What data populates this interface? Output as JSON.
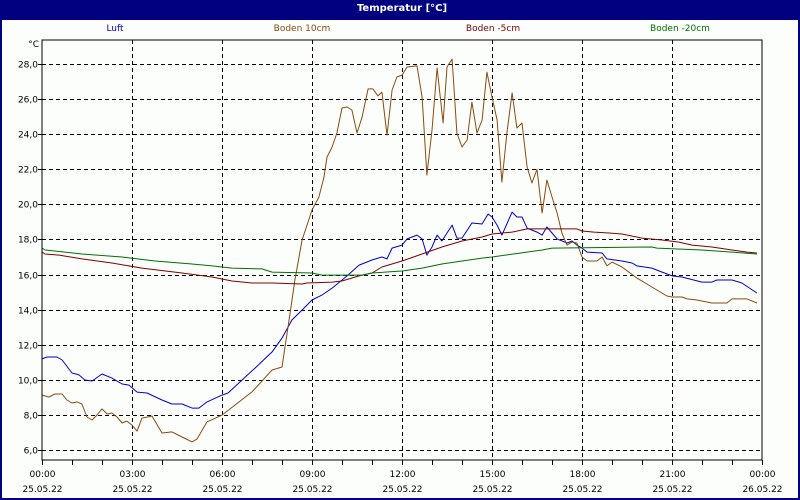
{
  "window": {
    "title": "Temperatur [°C]"
  },
  "colors": {
    "titlebar": "#000080",
    "luft": "#0000cc",
    "boden_10cm": "#8b4a0e",
    "boden_minus5cm": "#800000",
    "boden_minus20cm": "#007000"
  },
  "chart_data": {
    "type": "line",
    "title": "Temperatur [°C]",
    "xlabel": "",
    "ylabel": "°C",
    "ylim": [
      6.0,
      28.0
    ],
    "xlim_hours": [
      0,
      24
    ],
    "grid": true,
    "legend_position": "top",
    "y_ticks": [
      "6,0",
      "8,0",
      "10,0",
      "12,0",
      "14,0",
      "16,0",
      "18,0",
      "20,0",
      "22,0",
      "24,0",
      "26,0",
      "28,0"
    ],
    "y_tick_values": [
      6,
      8,
      10,
      12,
      14,
      16,
      18,
      20,
      22,
      24,
      26,
      28
    ],
    "x_ticks": [
      {
        "h": 0,
        "time": "00:00",
        "date": "25.05.22"
      },
      {
        "h": 3,
        "time": "03:00",
        "date": "25.05.22"
      },
      {
        "h": 6,
        "time": "06:00",
        "date": "25.05.22"
      },
      {
        "h": 9,
        "time": "09:00",
        "date": "25.05.22"
      },
      {
        "h": 12,
        "time": "12:00",
        "date": "25.05.22"
      },
      {
        "h": 15,
        "time": "15:00",
        "date": "25.05.22"
      },
      {
        "h": 18,
        "time": "18:00",
        "date": "25.05.22"
      },
      {
        "h": 21,
        "time": "21:00",
        "date": "25.05.22"
      },
      {
        "h": 24,
        "time": "00:00",
        "date": "26.05.22"
      }
    ],
    "series": [
      {
        "name": "Luft",
        "color": "#0000cc",
        "points": [
          [
            0,
            11.19
          ],
          [
            0.17,
            11.3
          ],
          [
            0.5,
            11.3
          ],
          [
            0.67,
            11.13
          ],
          [
            1,
            10.39
          ],
          [
            1.23,
            10.28
          ],
          [
            1.43,
            9.99
          ],
          [
            1.67,
            9.93
          ],
          [
            2,
            10.33
          ],
          [
            2.33,
            10.1
          ],
          [
            2.67,
            9.76
          ],
          [
            2.9,
            9.7
          ],
          [
            3.17,
            9.3
          ],
          [
            3.5,
            9.25
          ],
          [
            4,
            8.85
          ],
          [
            4.33,
            8.62
          ],
          [
            4.67,
            8.62
          ],
          [
            5,
            8.39
          ],
          [
            5.23,
            8.39
          ],
          [
            5.5,
            8.74
          ],
          [
            6,
            9.13
          ],
          [
            6.2,
            9.25
          ],
          [
            6.67,
            9.99
          ],
          [
            7.1,
            10.67
          ],
          [
            7.67,
            11.59
          ],
          [
            8,
            12.38
          ],
          [
            8.33,
            13.41
          ],
          [
            8.67,
            13.98
          ],
          [
            9,
            14.55
          ],
          [
            9.33,
            14.83
          ],
          [
            9.67,
            15.23
          ],
          [
            10.17,
            15.92
          ],
          [
            10.57,
            16.54
          ],
          [
            11,
            16.83
          ],
          [
            11.33,
            17.0
          ],
          [
            11.5,
            16.89
          ],
          [
            11.67,
            17.51
          ],
          [
            12,
            17.68
          ],
          [
            12.17,
            18.03
          ],
          [
            12.5,
            18.25
          ],
          [
            12.67,
            18.03
          ],
          [
            12.83,
            17.11
          ],
          [
            13,
            17.57
          ],
          [
            13.17,
            18.25
          ],
          [
            13.33,
            17.91
          ],
          [
            13.67,
            18.82
          ],
          [
            13.83,
            18.08
          ],
          [
            14,
            18.08
          ],
          [
            14.33,
            18.94
          ],
          [
            14.67,
            18.88
          ],
          [
            14.87,
            19.45
          ],
          [
            15,
            19.28
          ],
          [
            15.17,
            18.82
          ],
          [
            15.33,
            18.25
          ],
          [
            15.67,
            19.56
          ],
          [
            15.83,
            19.28
          ],
          [
            16,
            19.28
          ],
          [
            16.17,
            18.65
          ],
          [
            16.5,
            18.42
          ],
          [
            16.67,
            18.25
          ],
          [
            16.83,
            18.71
          ],
          [
            17,
            18.37
          ],
          [
            17.17,
            18.03
          ],
          [
            17.5,
            17.8
          ],
          [
            17.67,
            17.91
          ],
          [
            17.83,
            17.68
          ],
          [
            18,
            17.51
          ],
          [
            18.17,
            17.28
          ],
          [
            18.67,
            17.23
          ],
          [
            18.83,
            16.89
          ],
          [
            19.33,
            16.77
          ],
          [
            19.67,
            16.66
          ],
          [
            19.83,
            16.49
          ],
          [
            20.33,
            16.37
          ],
          [
            20.67,
            16.14
          ],
          [
            21,
            15.92
          ],
          [
            21.33,
            15.86
          ],
          [
            22,
            15.57
          ],
          [
            22.33,
            15.57
          ],
          [
            22.5,
            15.69
          ],
          [
            23,
            15.69
          ],
          [
            23.33,
            15.52
          ],
          [
            23.83,
            14.95
          ]
        ]
      },
      {
        "name": "Boden 10cm",
        "color": "#8b4a0e",
        "points": [
          [
            0,
            9.13
          ],
          [
            0.23,
            9.02
          ],
          [
            0.43,
            9.19
          ],
          [
            0.67,
            9.19
          ],
          [
            0.83,
            8.85
          ],
          [
            1,
            8.68
          ],
          [
            1.17,
            8.74
          ],
          [
            1.33,
            8.62
          ],
          [
            1.5,
            7.88
          ],
          [
            1.67,
            7.71
          ],
          [
            1.83,
            7.99
          ],
          [
            2,
            8.34
          ],
          [
            2.17,
            8.05
          ],
          [
            2.33,
            8.11
          ],
          [
            2.5,
            7.88
          ],
          [
            2.67,
            7.54
          ],
          [
            2.83,
            7.65
          ],
          [
            3,
            7.42
          ],
          [
            3.17,
            7.08
          ],
          [
            3.33,
            7.82
          ],
          [
            3.67,
            7.93
          ],
          [
            4,
            6.97
          ],
          [
            4.33,
            7.03
          ],
          [
            4.67,
            6.74
          ],
          [
            5,
            6.46
          ],
          [
            5.17,
            6.63
          ],
          [
            5.5,
            7.6
          ],
          [
            6,
            7.99
          ],
          [
            6.43,
            8.56
          ],
          [
            7,
            9.31
          ],
          [
            7.67,
            10.56
          ],
          [
            8,
            10.73
          ],
          [
            8.17,
            12.67
          ],
          [
            8.27,
            13.81
          ],
          [
            8.43,
            15.69
          ],
          [
            8.67,
            17.97
          ],
          [
            9,
            19.68
          ],
          [
            9.23,
            20.42
          ],
          [
            9.4,
            21.56
          ],
          [
            9.5,
            22.7
          ],
          [
            9.67,
            23.27
          ],
          [
            9.83,
            24.07
          ],
          [
            10,
            25.49
          ],
          [
            10.17,
            25.55
          ],
          [
            10.33,
            25.38
          ],
          [
            10.5,
            24.07
          ],
          [
            10.67,
            24.98
          ],
          [
            10.87,
            26.58
          ],
          [
            11.03,
            26.58
          ],
          [
            11.2,
            26.18
          ],
          [
            11.33,
            26.4
          ],
          [
            11.5,
            23.95
          ],
          [
            11.67,
            26.52
          ],
          [
            11.83,
            27.26
          ],
          [
            12,
            27.37
          ],
          [
            12.17,
            27.83
          ],
          [
            12.5,
            27.89
          ],
          [
            12.67,
            26.12
          ],
          [
            12.83,
            21.67
          ],
          [
            13,
            24.24
          ],
          [
            13.17,
            27.77
          ],
          [
            13.37,
            24.64
          ],
          [
            13.5,
            27.83
          ],
          [
            13.67,
            28.28
          ],
          [
            13.83,
            24.07
          ],
          [
            14,
            23.27
          ],
          [
            14.17,
            23.67
          ],
          [
            14.33,
            25.83
          ],
          [
            14.5,
            24.07
          ],
          [
            14.67,
            24.81
          ],
          [
            14.83,
            27.54
          ],
          [
            15,
            26.12
          ],
          [
            15.17,
            24.81
          ],
          [
            15.33,
            21.27
          ],
          [
            15.5,
            24.12
          ],
          [
            15.67,
            26.35
          ],
          [
            15.83,
            24.35
          ],
          [
            16,
            24.64
          ],
          [
            16.17,
            22.13
          ],
          [
            16.33,
            21.22
          ],
          [
            16.5,
            22.0
          ],
          [
            16.67,
            19.51
          ],
          [
            16.83,
            21.39
          ],
          [
            17,
            20.42
          ],
          [
            17.17,
            19.51
          ],
          [
            17.33,
            18.37
          ],
          [
            17.5,
            17.68
          ],
          [
            17.67,
            17.85
          ],
          [
            17.83,
            17.8
          ],
          [
            18,
            17.0
          ],
          [
            18.17,
            16.77
          ],
          [
            18.5,
            16.77
          ],
          [
            18.67,
            17.0
          ],
          [
            18.83,
            16.49
          ],
          [
            19,
            16.71
          ],
          [
            19.33,
            16.43
          ],
          [
            19.83,
            15.8
          ],
          [
            20.33,
            15.29
          ],
          [
            20.83,
            14.78
          ],
          [
            21,
            14.72
          ],
          [
            21.33,
            14.72
          ],
          [
            21.5,
            14.61
          ],
          [
            21.83,
            14.55
          ],
          [
            22.33,
            14.38
          ],
          [
            22.83,
            14.38
          ],
          [
            23,
            14.61
          ],
          [
            23.5,
            14.61
          ],
          [
            23.83,
            14.38
          ]
        ]
      },
      {
        "name": "Boden -5cm",
        "color": "#800000",
        "points": [
          [
            0,
            17.28
          ],
          [
            0.1,
            17.17
          ],
          [
            0.57,
            17.11
          ],
          [
            1.33,
            16.89
          ],
          [
            2.33,
            16.66
          ],
          [
            3.33,
            16.37
          ],
          [
            4.67,
            16.09
          ],
          [
            5.67,
            15.86
          ],
          [
            6.33,
            15.63
          ],
          [
            7,
            15.52
          ],
          [
            7.67,
            15.52
          ],
          [
            8.67,
            15.46
          ],
          [
            8.83,
            15.52
          ],
          [
            9.67,
            15.57
          ],
          [
            10,
            15.63
          ],
          [
            10.57,
            15.92
          ],
          [
            11,
            16.09
          ],
          [
            11.33,
            16.43
          ],
          [
            12,
            16.77
          ],
          [
            12.67,
            17.17
          ],
          [
            13.33,
            17.57
          ],
          [
            14,
            17.91
          ],
          [
            14.67,
            18.14
          ],
          [
            15,
            18.31
          ],
          [
            15.67,
            18.42
          ],
          [
            16.17,
            18.6
          ],
          [
            17.33,
            18.6
          ],
          [
            17.83,
            18.6
          ],
          [
            18,
            18.48
          ],
          [
            18.4,
            18.42
          ],
          [
            18.9,
            18.37
          ],
          [
            19.33,
            18.31
          ],
          [
            20,
            18.08
          ],
          [
            20.67,
            17.97
          ],
          [
            21.23,
            17.85
          ],
          [
            21.67,
            17.68
          ],
          [
            22.33,
            17.57
          ],
          [
            23,
            17.4
          ],
          [
            23.5,
            17.28
          ],
          [
            23.83,
            17.23
          ]
        ]
      },
      {
        "name": "Boden -20cm",
        "color": "#007000",
        "points": [
          [
            0,
            17.51
          ],
          [
            0.1,
            17.4
          ],
          [
            0.43,
            17.34
          ],
          [
            1.33,
            17.17
          ],
          [
            2.67,
            17.0
          ],
          [
            3.77,
            16.77
          ],
          [
            5,
            16.6
          ],
          [
            5.67,
            16.49
          ],
          [
            6.33,
            16.37
          ],
          [
            7.33,
            16.32
          ],
          [
            7.67,
            16.14
          ],
          [
            9,
            16.09
          ],
          [
            9.33,
            15.97
          ],
          [
            10.67,
            15.97
          ],
          [
            11,
            16.09
          ],
          [
            12,
            16.2
          ],
          [
            12.67,
            16.37
          ],
          [
            13.33,
            16.6
          ],
          [
            14,
            16.77
          ],
          [
            14.67,
            16.94
          ],
          [
            15,
            17.0
          ],
          [
            16.67,
            17.4
          ],
          [
            17,
            17.51
          ],
          [
            20.33,
            17.57
          ],
          [
            20.5,
            17.51
          ],
          [
            22,
            17.4
          ],
          [
            23,
            17.28
          ],
          [
            23.83,
            17.17
          ]
        ]
      }
    ]
  }
}
